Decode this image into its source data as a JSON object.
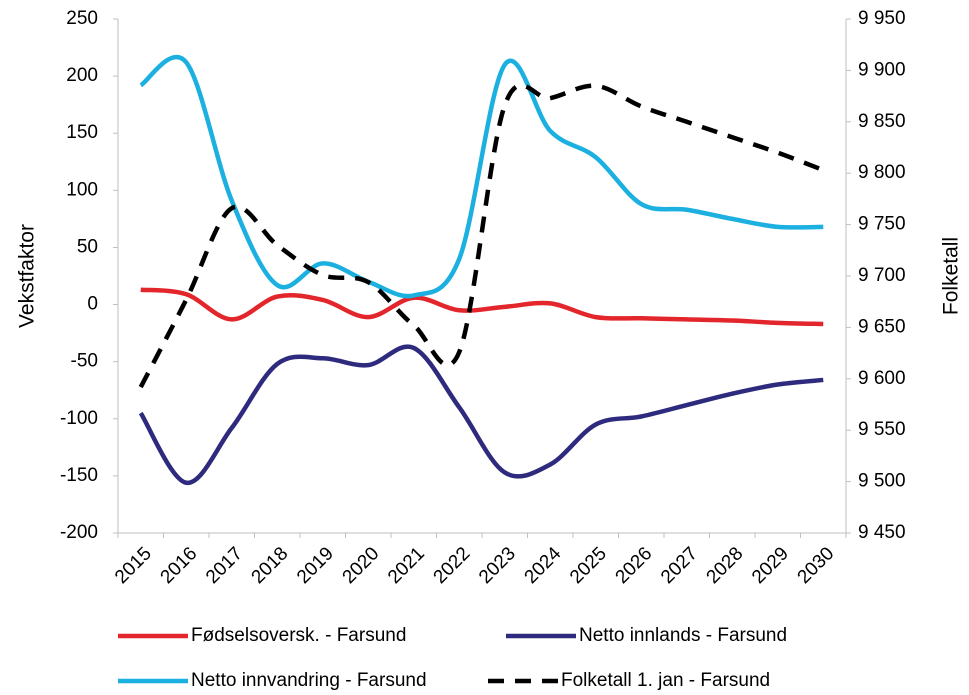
{
  "chart_data": {
    "type": "line",
    "categories": [
      "2015",
      "2016",
      "2017",
      "2018",
      "2019",
      "2020",
      "2021",
      "2022",
      "2023",
      "2024",
      "2025",
      "2026",
      "2027",
      "2028",
      "2029",
      "2030"
    ],
    "ylabel": "Vekstfaktor",
    "y2label": "Folketall",
    "ylim": [
      -200,
      250
    ],
    "yticks": [
      -200,
      -150,
      -100,
      -50,
      0,
      50,
      100,
      150,
      200,
      250
    ],
    "y2lim": [
      9450,
      9950
    ],
    "y2ticks": [
      {
        "value": 9450,
        "label": "9 450"
      },
      {
        "value": 9500,
        "label": "9 500"
      },
      {
        "value": 9550,
        "label": "9 550"
      },
      {
        "value": 9600,
        "label": "9 600"
      },
      {
        "value": 9650,
        "label": "9 650"
      },
      {
        "value": 9700,
        "label": "9 700"
      },
      {
        "value": 9750,
        "label": "9 750"
      },
      {
        "value": 9800,
        "label": "9 800"
      },
      {
        "value": 9850,
        "label": "9 850"
      },
      {
        "value": 9900,
        "label": "9 900"
      },
      {
        "value": 9950,
        "label": "9 950"
      }
    ],
    "grid": false,
    "legend": "bottom",
    "series": [
      {
        "name": "Fødselsoversk. - Farsund",
        "color": "#e3262b",
        "values": [
          13,
          9,
          -13,
          7,
          4,
          -11,
          6,
          -5,
          -2,
          1,
          -11,
          -12,
          -13,
          -14,
          -16,
          -17
        ]
      },
      {
        "name": "Netto innlands - Farsund",
        "color": "#2e2a7e",
        "values": [
          -95,
          -156,
          -108,
          -52,
          -47,
          -53,
          -38,
          -90,
          -147,
          -140,
          -105,
          -98,
          -88,
          -78,
          -70,
          -66
        ]
      },
      {
        "name": "Netto innvandring - Farsund",
        "color": "#1cb0e0",
        "values": [
          192,
          212,
          91,
          17,
          36,
          20,
          8,
          40,
          210,
          152,
          129,
          88,
          83,
          75,
          68,
          68
        ]
      },
      {
        "name": "Folketall 1. jan - Farsund",
        "color": "#000000",
        "axis": "y2",
        "dashed": true,
        "values": [
          9592,
          9677,
          9766,
          9730,
          9701,
          9694,
          9652,
          9626,
          9866,
          9873,
          9885,
          9865,
          9850,
          9835,
          9820,
          9803
        ]
      }
    ]
  }
}
